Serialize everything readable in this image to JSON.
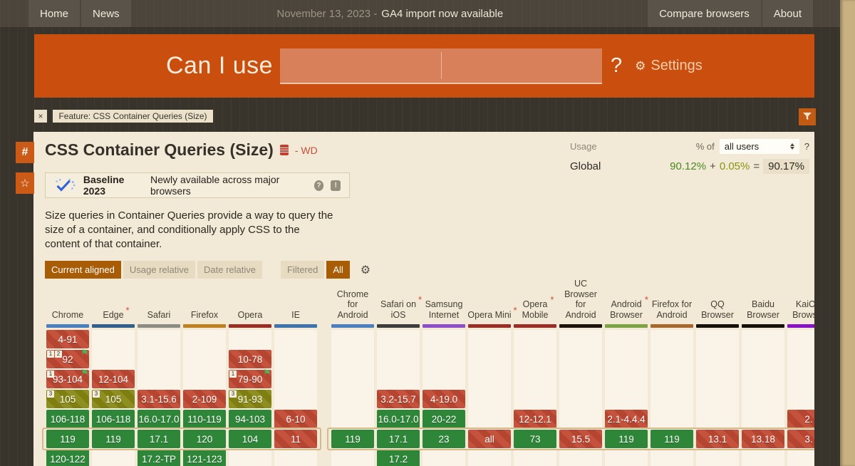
{
  "navbar": {
    "home": "Home",
    "news": "News",
    "date_prefix": "November 13, 2023 -",
    "announcement": "GA4 import now available",
    "compare": "Compare browsers",
    "about": "About"
  },
  "header": {
    "logo": "Can I use",
    "question": "?",
    "settings": "Settings"
  },
  "filter_bar": {
    "close": "×",
    "feature_label": "Feature: CSS Container Queries (Size)"
  },
  "side_buttons": {
    "anchor": "#",
    "star": "☆"
  },
  "feature": {
    "title": "CSS Container Queries (Size)",
    "spec_status": "- WD",
    "usage": {
      "label": "Usage",
      "percent_of": "% of",
      "select_value": "all users",
      "help": "?",
      "scope": "Global",
      "full": "90.12%",
      "plus": "+",
      "partial": "0.05%",
      "equals": "=",
      "total": "90.17%"
    },
    "baseline": {
      "title": "Baseline 2023",
      "subtitle": "Newly available across major browsers",
      "help": "?",
      "feedback": "!"
    },
    "description": "Size queries in Container Queries provide a way to query the size of a container, and conditionally apply CSS to the content of that container."
  },
  "controls": {
    "view": [
      {
        "label": "Current aligned",
        "active": true
      },
      {
        "label": "Usage relative",
        "active": false
      },
      {
        "label": "Date relative",
        "active": false
      }
    ],
    "filter": [
      {
        "label": "Filtered",
        "active": false
      },
      {
        "label": "All",
        "active": true
      }
    ]
  },
  "colors": {
    "accent_orange": "#ca4e0e",
    "panel_bg": "#f2e9d7",
    "page_bg": "#39342b",
    "support_yes": "#2e8639",
    "support_no": "#c5523c",
    "support_partial": "#8f8e20",
    "current_row_outline": "#d4ba8b",
    "baseline_blue": "#2f63d8"
  },
  "table": {
    "row_count": 7,
    "current_row_index": 5,
    "sections": [
      {
        "name": "desktop",
        "columns": [
          {
            "name": "Chrome",
            "color": "#4a7fc0",
            "cells": [
              {
                "row": 0,
                "text": "4-91",
                "type": "n"
              },
              {
                "row": 1,
                "text": "92",
                "type": "n",
                "badges": [
                  "1",
                  "2"
                ],
                "flag": true
              },
              {
                "row": 2,
                "text": "93-104",
                "type": "n",
                "badges": [
                  "1"
                ],
                "flag": true
              },
              {
                "row": 3,
                "text": "105",
                "type": "p",
                "badges": [
                  "3"
                ]
              },
              {
                "row": 4,
                "text": "106-118",
                "type": "y"
              },
              {
                "row": 5,
                "text": "119",
                "type": "y"
              },
              {
                "row": 6,
                "text": "120-122",
                "type": "y"
              }
            ]
          },
          {
            "name": "Edge",
            "color": "#31608f",
            "asterisk": true,
            "cells": [
              {
                "row": 2,
                "text": "12-104",
                "type": "n"
              },
              {
                "row": 3,
                "text": "105",
                "type": "p",
                "badges": [
                  "3"
                ]
              },
              {
                "row": 4,
                "text": "106-118",
                "type": "y"
              },
              {
                "row": 5,
                "text": "119",
                "type": "y"
              }
            ]
          },
          {
            "name": "Safari",
            "color": "#8c8c86",
            "cells": [
              {
                "row": 3,
                "text": "3.1-15.6",
                "type": "n"
              },
              {
                "row": 4,
                "text": "16.0-17.0",
                "type": "y"
              },
              {
                "row": 5,
                "text": "17.1",
                "type": "y"
              },
              {
                "row": 6,
                "text": "17.2-TP",
                "type": "y"
              }
            ]
          },
          {
            "name": "Firefox",
            "color": "#c1801f",
            "cells": [
              {
                "row": 3,
                "text": "2-109",
                "type": "n"
              },
              {
                "row": 4,
                "text": "110-119",
                "type": "y"
              },
              {
                "row": 5,
                "text": "120",
                "type": "y"
              },
              {
                "row": 6,
                "text": "121-123",
                "type": "y"
              }
            ]
          },
          {
            "name": "Opera",
            "color": "#9b2d24",
            "cells": [
              {
                "row": 1,
                "text": "10-78",
                "type": "n"
              },
              {
                "row": 2,
                "text": "79-90",
                "type": "n",
                "badges": [
                  "1"
                ],
                "flag": true
              },
              {
                "row": 3,
                "text": "91-93",
                "type": "p",
                "badges": [
                  "3"
                ]
              },
              {
                "row": 4,
                "text": "94-103",
                "type": "y"
              },
              {
                "row": 5,
                "text": "104",
                "type": "y"
              }
            ]
          },
          {
            "name": "IE",
            "color": "#3d74ad",
            "cells": [
              {
                "row": 4,
                "text": "6-10",
                "type": "n"
              },
              {
                "row": 5,
                "text": "11",
                "type": "n"
              }
            ]
          }
        ]
      },
      {
        "name": "mobile",
        "columns": [
          {
            "name": "Chrome\nfor\nAndroid",
            "color": "#4a7fc0",
            "cells": [
              {
                "row": 5,
                "text": "119",
                "type": "y"
              }
            ]
          },
          {
            "name": "Safari on\niOS",
            "color": "#3c3c3a",
            "asterisk": true,
            "cells": [
              {
                "row": 3,
                "text": "3.2-15.7",
                "type": "n"
              },
              {
                "row": 4,
                "text": "16.0-17.0",
                "type": "y"
              },
              {
                "row": 5,
                "text": "17.1",
                "type": "y"
              },
              {
                "row": 6,
                "text": "17.2",
                "type": "y"
              }
            ]
          },
          {
            "name": "Samsung\nInternet",
            "color": "#8e4ec9",
            "cells": [
              {
                "row": 3,
                "text": "4-19.0",
                "type": "n"
              },
              {
                "row": 4,
                "text": "20-22",
                "type": "y"
              },
              {
                "row": 5,
                "text": "23",
                "type": "y"
              }
            ]
          },
          {
            "name": "Opera Mini",
            "color": "#9b2d24",
            "asterisk": true,
            "cells": [
              {
                "row": 5,
                "text": "all",
                "type": "n"
              }
            ]
          },
          {
            "name": "Opera\nMobile",
            "color": "#9b2d24",
            "asterisk": true,
            "cells": [
              {
                "row": 4,
                "text": "12-12.1",
                "type": "n"
              },
              {
                "row": 5,
                "text": "73",
                "type": "y"
              }
            ]
          },
          {
            "name": "UC\nBrowser\nfor\nAndroid",
            "color": "#1a140d",
            "cells": [
              {
                "row": 5,
                "text": "15.5",
                "type": "n"
              }
            ]
          },
          {
            "name": "Android\nBrowser",
            "color": "#7ba344",
            "asterisk": true,
            "cells": [
              {
                "row": 4,
                "text": "2.1-4.4.4",
                "type": "n"
              },
              {
                "row": 5,
                "text": "119",
                "type": "y"
              }
            ]
          },
          {
            "name": "Firefox for\nAndroid",
            "color": "#a9662c",
            "cells": [
              {
                "row": 5,
                "text": "119",
                "type": "y"
              }
            ]
          },
          {
            "name": "QQ\nBrowser",
            "color": "#15100b",
            "cells": [
              {
                "row": 5,
                "text": "13.1",
                "type": "n"
              }
            ]
          },
          {
            "name": "Baidu\nBrowser",
            "color": "#15100b",
            "cells": [
              {
                "row": 5,
                "text": "13.18",
                "type": "n"
              }
            ]
          },
          {
            "name": "KaiOS\nBrowser",
            "color": "#8a10c8",
            "cells": [
              {
                "row": 4,
                "text": "2.",
                "type": "n"
              },
              {
                "row": 5,
                "text": "3.",
                "type": "n"
              }
            ]
          }
        ]
      }
    ]
  }
}
